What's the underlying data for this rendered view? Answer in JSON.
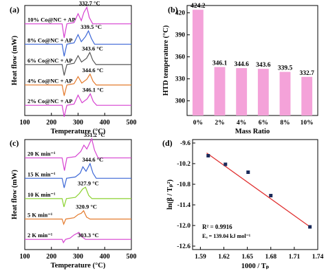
{
  "chart_data": [
    {
      "panel": "(a)",
      "type": "line",
      "xlabel": "Temperature (°C)",
      "ylabel": "Heat flow (mW)",
      "xlim": [
        100,
        500
      ],
      "xticks": [
        100,
        200,
        300,
        400,
        500
      ],
      "series": [
        {
          "name": "10% Co@NC + AP",
          "color": "#d63fd0",
          "peak_label": "332.7 °C",
          "points": [
            [
              240,
              0
            ],
            [
              248,
              -2.2
            ],
            [
              258,
              0
            ],
            [
              285,
              0.2
            ],
            [
              300,
              1.6
            ],
            [
              312,
              0.5
            ],
            [
              322,
              1.8
            ],
            [
              333,
              2.6
            ],
            [
              342,
              1.0
            ],
            [
              355,
              0
            ],
            [
              500,
              0
            ]
          ]
        },
        {
          "name": "8% Co@NC + AP",
          "color": "#3b66d6",
          "peak_label": "339.5 °C",
          "points": [
            [
              240,
              0
            ],
            [
              248,
              -1.9
            ],
            [
              258,
              0
            ],
            [
              285,
              0.2
            ],
            [
              300,
              1.5
            ],
            [
              312,
              0.4
            ],
            [
              328,
              1.2
            ],
            [
              339,
              2.1
            ],
            [
              350,
              0.9
            ],
            [
              362,
              0
            ],
            [
              500,
              0
            ]
          ]
        },
        {
          "name": "6% Co@NC + AP",
          "color": "#555555",
          "peak_label": "343.6 °C",
          "points": [
            [
              240,
              0
            ],
            [
              248,
              -1.7
            ],
            [
              258,
              0
            ],
            [
              285,
              0.2
            ],
            [
              300,
              1.4
            ],
            [
              313,
              0.4
            ],
            [
              332,
              1.0
            ],
            [
              344,
              1.9
            ],
            [
              355,
              0.7
            ],
            [
              367,
              0
            ],
            [
              500,
              0
            ]
          ]
        },
        {
          "name": "4% Co@NC + AP",
          "color": "#e47a2c",
          "peak_label": "344.6 °C",
          "points": [
            [
              240,
              0
            ],
            [
              248,
              -1.7
            ],
            [
              258,
              0
            ],
            [
              285,
              0.2
            ],
            [
              300,
              1.3
            ],
            [
              314,
              0.3
            ],
            [
              333,
              0.9
            ],
            [
              345,
              1.7
            ],
            [
              356,
              0.6
            ],
            [
              368,
              0
            ],
            [
              500,
              0
            ]
          ]
        },
        {
          "name": "2% Co@NC + AP",
          "color": "#d63fd0",
          "peak_label": "346.1 °C",
          "points": [
            [
              240,
              0
            ],
            [
              248,
              -1.8
            ],
            [
              258,
              0
            ],
            [
              285,
              0.2
            ],
            [
              300,
              1.6
            ],
            [
              315,
              0.4
            ],
            [
              334,
              1.0
            ],
            [
              346,
              1.8
            ],
            [
              357,
              0.6
            ],
            [
              370,
              0
            ],
            [
              500,
              0
            ]
          ]
        }
      ]
    },
    {
      "panel": "(b)",
      "type": "bar",
      "xlabel": "Mass Ratio",
      "ylabel": "HTD temperature (°C)",
      "ylim": [
        280,
        430
      ],
      "yticks": [
        300,
        330,
        360,
        390,
        420
      ],
      "categories": [
        "0%",
        "2%",
        "4%",
        "6%",
        "8%",
        "10%"
      ],
      "values": [
        424.2,
        346.1,
        344.6,
        343.6,
        339.5,
        332.7
      ],
      "value_labels": [
        "424.2",
        "346.1",
        "344.6",
        "343.6",
        "339.5",
        "332.7"
      ],
      "bar_color": "#f4a2d9"
    },
    {
      "panel": "(c)",
      "type": "line",
      "xlabel": "Temperature (°C)",
      "ylabel": "Heat flow (mW)",
      "xlim": [
        100,
        500
      ],
      "xticks": [
        100,
        200,
        300,
        400,
        500
      ],
      "series": [
        {
          "name": "20 K min⁻¹",
          "color": "#d63fd0",
          "peak_label": "351.2 °C",
          "points": [
            [
              240,
              0
            ],
            [
              249,
              -2.0
            ],
            [
              258,
              0
            ],
            [
              290,
              0.2
            ],
            [
              310,
              1.0
            ],
            [
              322,
              2.0
            ],
            [
              333,
              1.4
            ],
            [
              351,
              3.0
            ],
            [
              362,
              1.2
            ],
            [
              375,
              0
            ],
            [
              500,
              0
            ]
          ]
        },
        {
          "name": "15 K min⁻¹",
          "color": "#3b66d6",
          "peak_label": "344.6 °C",
          "points": [
            [
              240,
              0
            ],
            [
              248,
              -1.5
            ],
            [
              257,
              0
            ],
            [
              290,
              0.2
            ],
            [
              308,
              0.8
            ],
            [
              318,
              1.8
            ],
            [
              330,
              1.1
            ],
            [
              345,
              2.3
            ],
            [
              356,
              0.8
            ],
            [
              368,
              0
            ],
            [
              500,
              0
            ]
          ]
        },
        {
          "name": "10 K min⁻¹",
          "color": "#8ad12e",
          "peak_label": "327.9 °C",
          "points": [
            [
              240,
              0
            ],
            [
              247,
              -1.3
            ],
            [
              256,
              0
            ],
            [
              290,
              0.2
            ],
            [
              305,
              0.8
            ],
            [
              317,
              1.5
            ],
            [
              328,
              1.8
            ],
            [
              340,
              0.5
            ],
            [
              352,
              0
            ],
            [
              500,
              0
            ]
          ]
        },
        {
          "name": "5 K min⁻¹",
          "color": "#e47a2c",
          "peak_label": "320.9 °C",
          "points": [
            [
              240,
              0
            ],
            [
              246,
              -0.8
            ],
            [
              254,
              0
            ],
            [
              285,
              0.2
            ],
            [
              300,
              0.7
            ],
            [
              312,
              0.9
            ],
            [
              321,
              1.3
            ],
            [
              332,
              0.3
            ],
            [
              345,
              0
            ],
            [
              500,
              0
            ]
          ]
        },
        {
          "name": "2 K min⁻¹",
          "color": "#d63fd0",
          "peak_label": "303.3 °C",
          "points": [
            [
              240,
              0
            ],
            [
              245,
              -0.5
            ],
            [
              253,
              0
            ],
            [
              270,
              0.2
            ],
            [
              285,
              0.7
            ],
            [
              303,
              1.1
            ],
            [
              315,
              0.4
            ],
            [
              328,
              0
            ],
            [
              500,
              0
            ]
          ]
        }
      ]
    },
    {
      "panel": "(d)",
      "type": "scatter",
      "xlabel": "1000 / Tₚ",
      "ylabel": "ln(β / Tₚ²)",
      "xlim": [
        1.58,
        1.74
      ],
      "ylim": [
        -12.7,
        -9.5
      ],
      "xticks": [
        "1.59",
        "1.62",
        "1.65",
        "1.68",
        "1.71",
        "1.74"
      ],
      "yticks": [
        "-9.6",
        "-10.2",
        "-10.8",
        "-11.4",
        "-12.0",
        "-12.6"
      ],
      "x": [
        1.6,
        1.622,
        1.651,
        1.68,
        1.73
      ],
      "y": [
        -9.97,
        -10.22,
        -10.45,
        -11.13,
        -12.04
      ],
      "fit_line": {
        "x": [
          1.598,
          1.732
        ],
        "y": [
          -9.89,
          -12.07
        ],
        "color": "#e03030"
      },
      "annotations": [
        "R² = 0.9916",
        "Eₐ = 139.04 kJ mol⁻¹"
      ]
    }
  ]
}
